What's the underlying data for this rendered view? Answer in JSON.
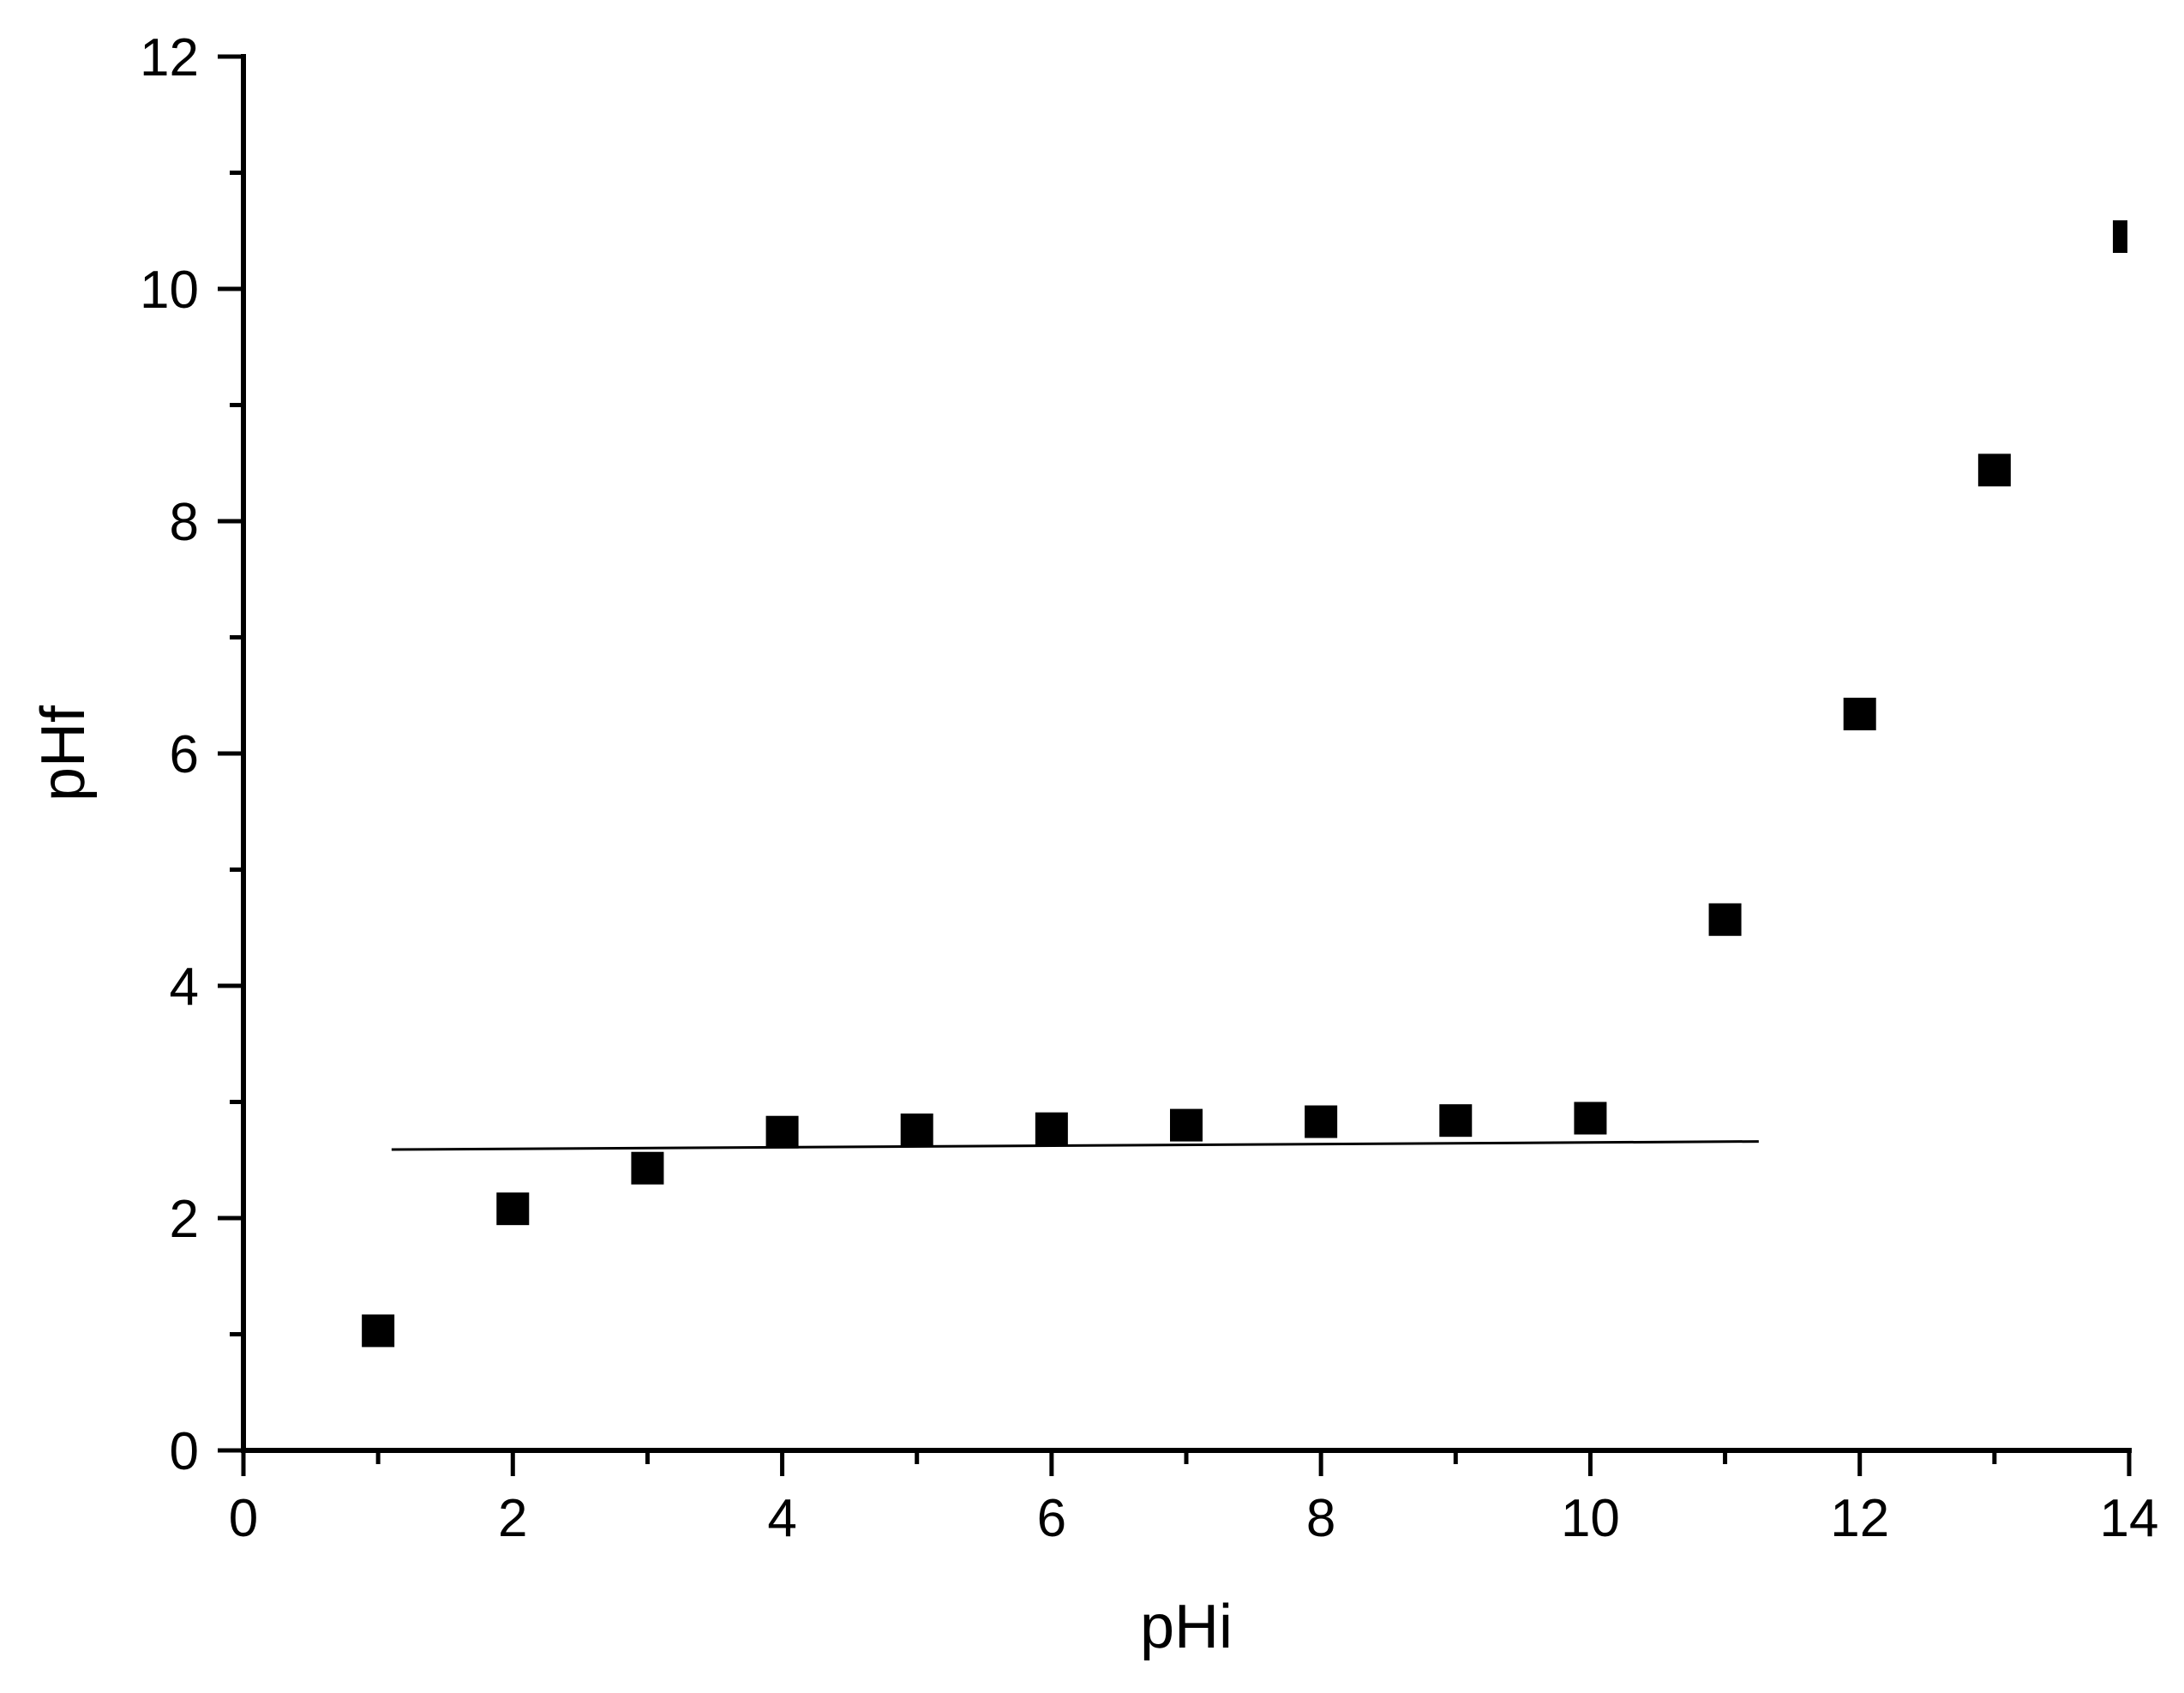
{
  "chart_data": {
    "type": "scatter",
    "title": "",
    "xlabel": "pHi",
    "ylabel": "pHf",
    "xlim": [
      0,
      14
    ],
    "ylim": [
      0,
      12
    ],
    "x_ticks_major": [
      0,
      2,
      4,
      6,
      8,
      10,
      12,
      14
    ],
    "x_ticks_minor": [
      1,
      3,
      5,
      7,
      9,
      11,
      13
    ],
    "y_ticks_major": [
      0,
      2,
      4,
      6,
      8,
      10,
      12
    ],
    "y_ticks_minor": [
      1,
      3,
      5,
      7,
      9,
      11
    ],
    "grid": false,
    "legend": "none",
    "marker": "filled-square",
    "color": "#000000",
    "series": [
      {
        "points": [
          {
            "x": 1,
            "y": 1.03
          },
          {
            "x": 2,
            "y": 2.08
          },
          {
            "x": 3,
            "y": 2.43
          },
          {
            "x": 4,
            "y": 2.74
          },
          {
            "x": 5,
            "y": 2.76
          },
          {
            "x": 6,
            "y": 2.77
          },
          {
            "x": 7,
            "y": 2.8
          },
          {
            "x": 8,
            "y": 2.83
          },
          {
            "x": 9,
            "y": 2.84
          },
          {
            "x": 10,
            "y": 2.86
          },
          {
            "x": 11,
            "y": 4.57
          },
          {
            "x": 12,
            "y": 6.34
          },
          {
            "x": 13,
            "y": 8.44
          },
          {
            "x": 14,
            "y": 10.45
          }
        ]
      }
    ],
    "fit_line": {
      "type": "linear",
      "points": [
        {
          "x": 1.1,
          "y": 2.59
        },
        {
          "x": 11.25,
          "y": 2.66
        }
      ]
    }
  }
}
